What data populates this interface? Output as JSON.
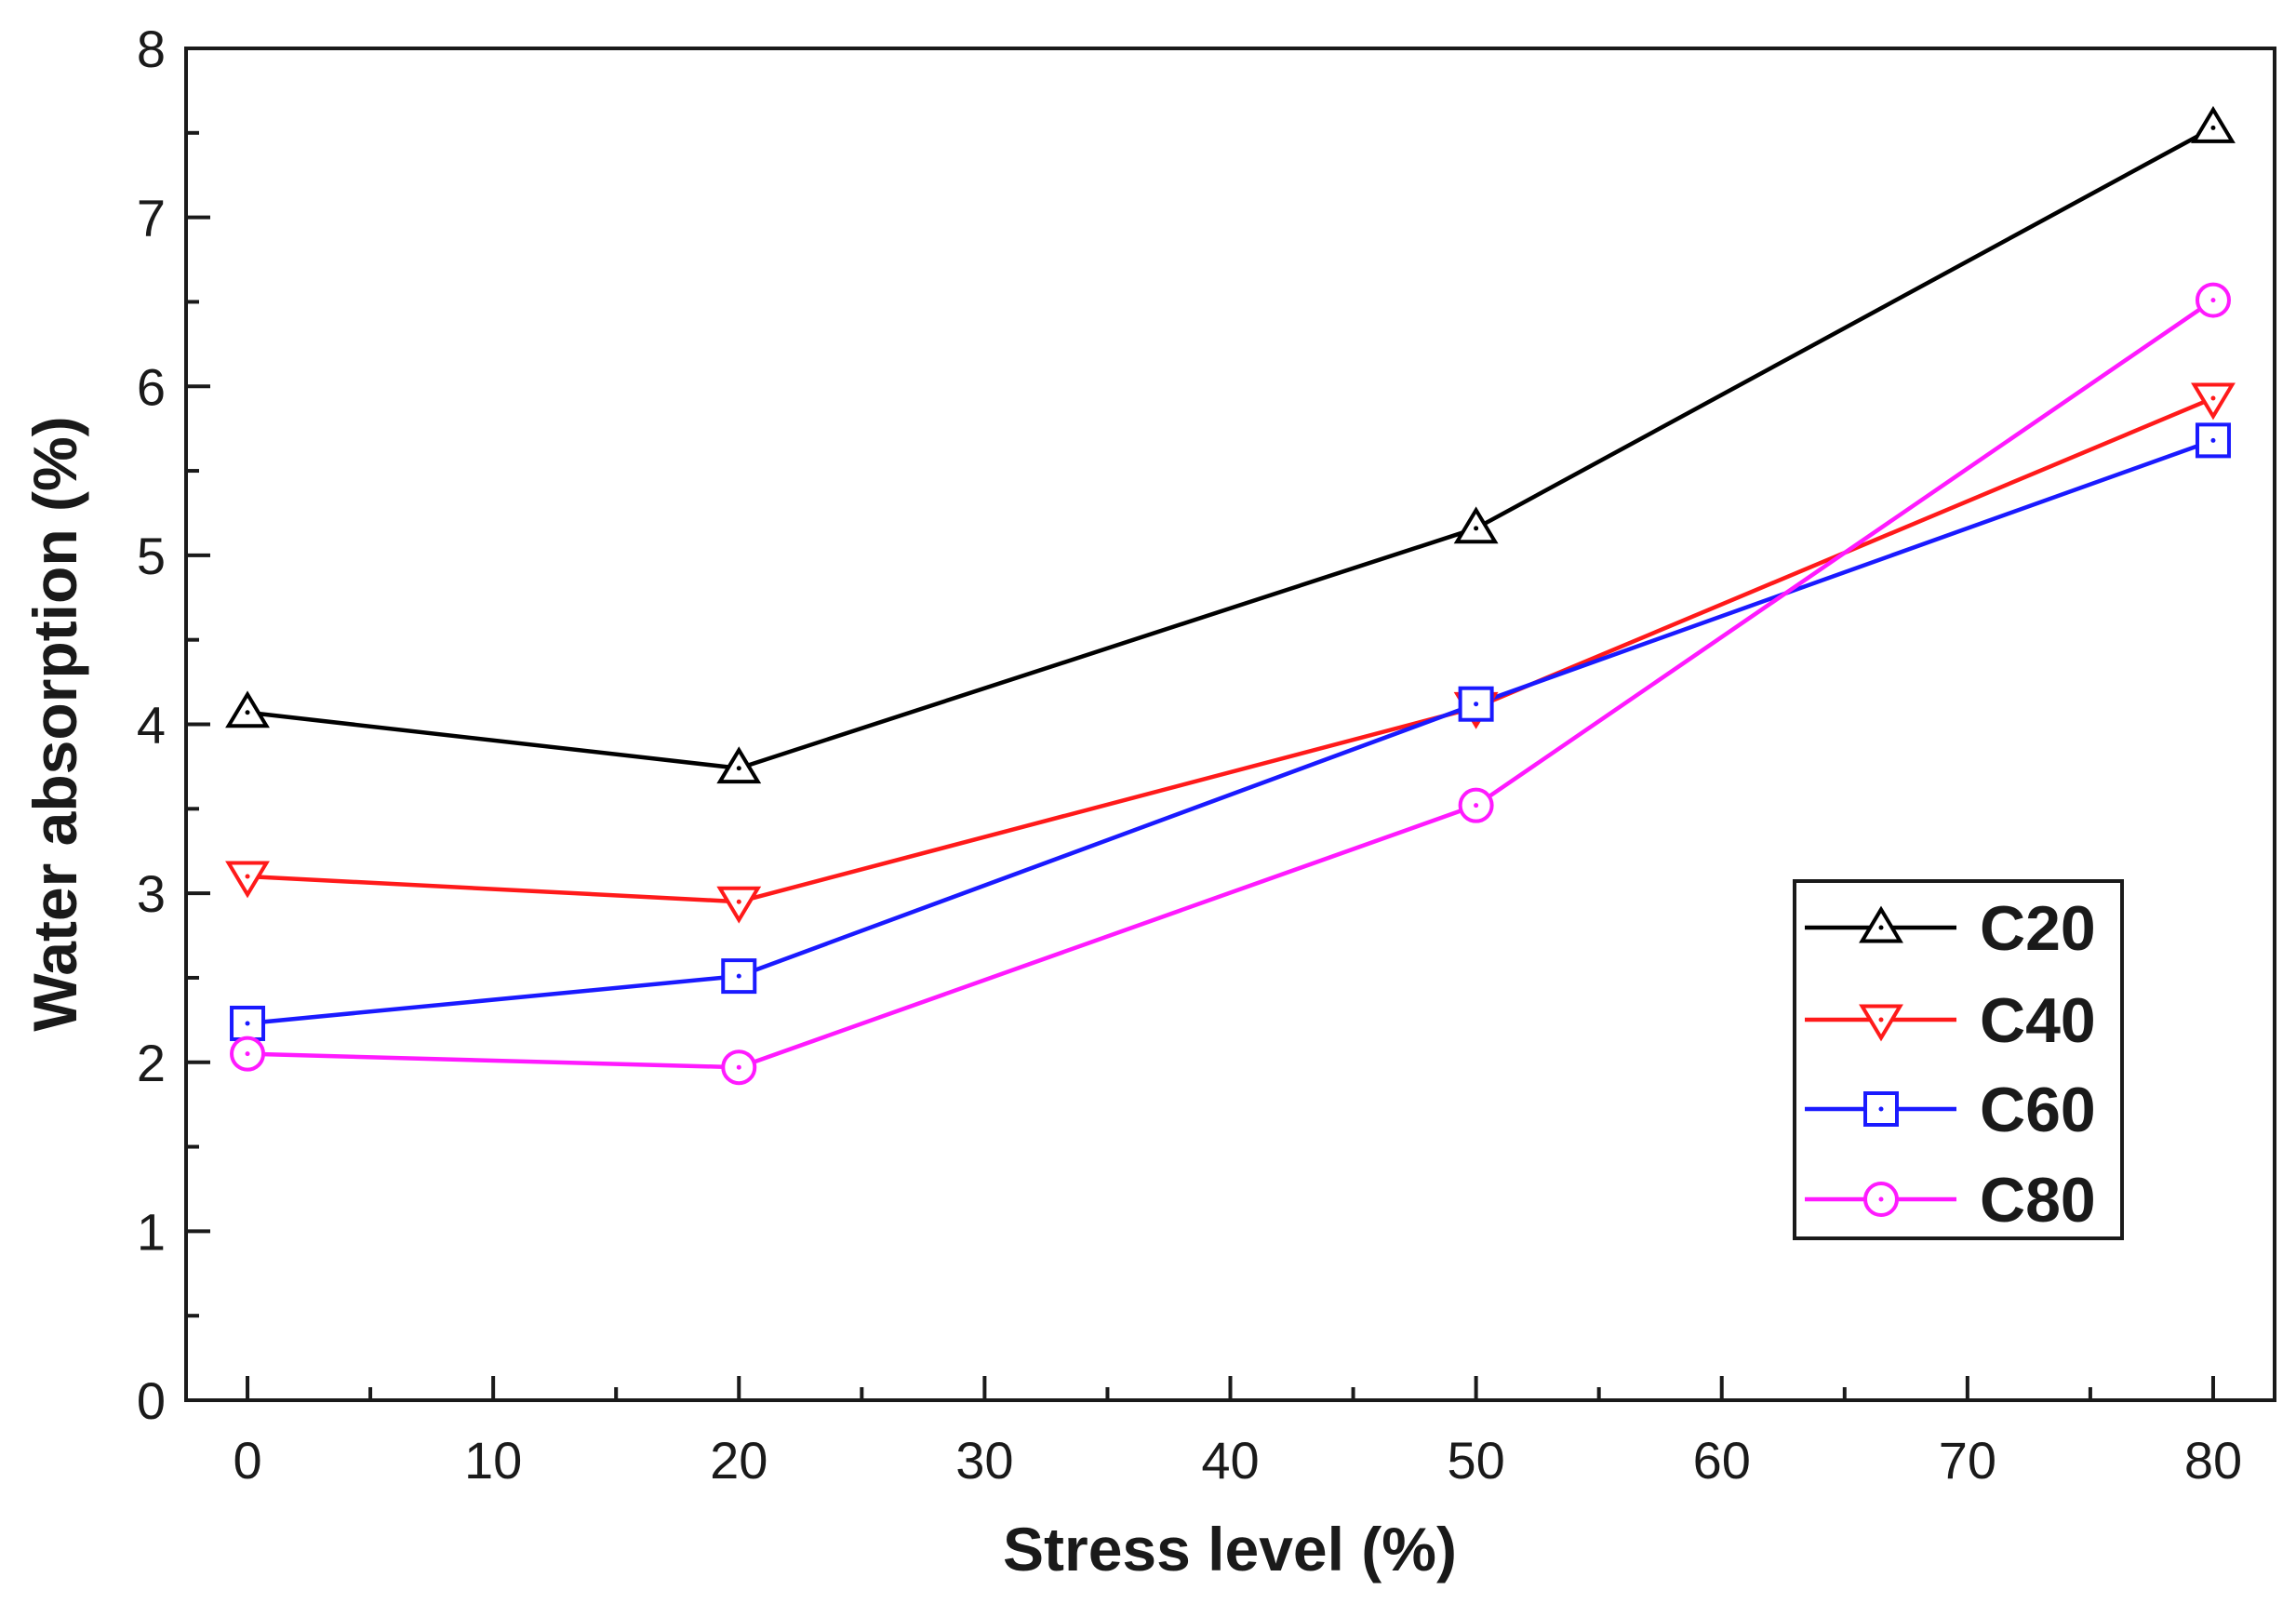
{
  "chart_data": {
    "type": "line",
    "title": "",
    "xlabel": "Stress level (%)",
    "ylabel": "Water absorption (%)",
    "xlim": [
      -2.5,
      82.5
    ],
    "ylim": [
      0,
      8
    ],
    "x_ticks": [
      0,
      10,
      20,
      30,
      40,
      50,
      60,
      70,
      80
    ],
    "y_ticks": [
      0,
      1,
      2,
      3,
      4,
      5,
      6,
      7,
      8
    ],
    "x": [
      0,
      20,
      50,
      80
    ],
    "grid": false,
    "legend_position": "lower-right",
    "series": [
      {
        "name": "C20",
        "color": "#000000",
        "marker": "triangle-up",
        "values": [
          4.07,
          3.74,
          5.16,
          7.53
        ]
      },
      {
        "name": "C40",
        "color": "#ff1a1a",
        "marker": "triangle-down",
        "values": [
          3.1,
          2.95,
          4.1,
          5.93
        ]
      },
      {
        "name": "C60",
        "color": "#1a1aff",
        "marker": "square",
        "values": [
          2.23,
          2.51,
          4.12,
          5.68
        ]
      },
      {
        "name": "C80",
        "color": "#ff1aff",
        "marker": "circle",
        "values": [
          2.05,
          1.97,
          3.52,
          6.51
        ]
      }
    ]
  }
}
